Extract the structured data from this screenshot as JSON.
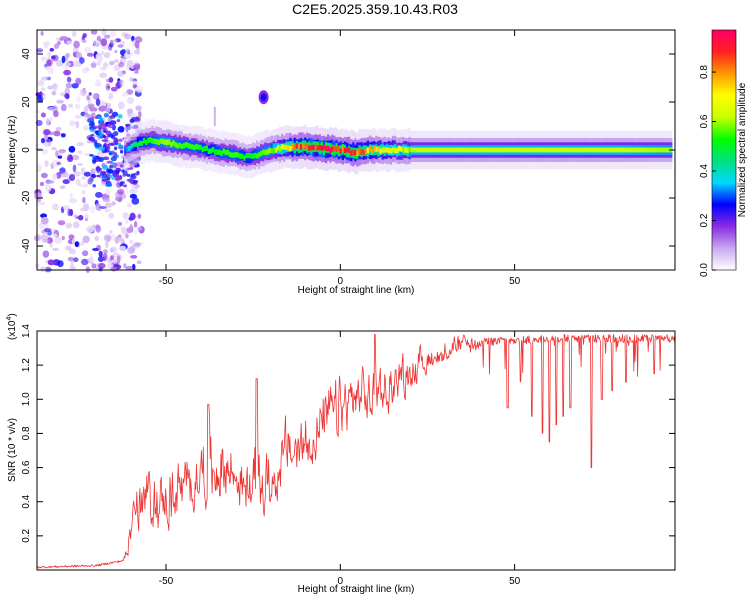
{
  "title": "C2E5.2025.359.10.43.R03",
  "chart_data": [
    {
      "type": "heatmap",
      "name": "spectrogram",
      "xlabel": "Height of straight line (km)",
      "ylabel": "Frequency (Hz)",
      "xlim": [
        -87,
        96
      ],
      "ylim": [
        -50,
        50
      ],
      "xticks": [
        "-50",
        "0",
        "50"
      ],
      "xtick_values": [
        -50,
        0,
        50
      ],
      "yticks": [
        "-40",
        "-20",
        "0",
        "20",
        "40"
      ],
      "ytick_values": [
        -40,
        -20,
        0,
        20,
        40
      ],
      "colorbar": {
        "label": "Normalized spectral amplitude",
        "range": [
          0,
          0.97
        ],
        "ticks": [
          "0.0",
          "0.2",
          "0.4",
          "0.6",
          "0.8"
        ],
        "tick_values": [
          0,
          0.2,
          0.4,
          0.6,
          0.8
        ],
        "stops": [
          "#ffffff",
          "#c8a8f0",
          "#8a2be2",
          "#0000ff",
          "#00d8ff",
          "#00e080",
          "#00ff00",
          "#c8ff00",
          "#ffff00",
          "#ff9900",
          "#ff2020",
          "#ff0066"
        ]
      },
      "ridge": {
        "x": [
          -62,
          -58,
          -54,
          -50,
          -46,
          -42,
          -38,
          -34,
          -30,
          -27,
          -24,
          -20,
          -16,
          -12,
          -8,
          -4,
          0,
          4,
          8,
          12,
          20,
          40,
          60,
          80,
          95
        ],
        "center_hz": [
          0,
          3,
          4,
          3,
          2,
          1,
          0,
          -1,
          -2,
          -3,
          -2,
          0,
          1,
          1.5,
          1,
          0.5,
          0,
          -1,
          0,
          0,
          0,
          0,
          0,
          0,
          0
        ],
        "amplitude": [
          0.3,
          0.5,
          0.55,
          0.6,
          0.55,
          0.55,
          0.5,
          0.55,
          0.55,
          0.5,
          0.55,
          0.6,
          0.7,
          0.85,
          0.9,
          0.9,
          0.85,
          0.85,
          0.75,
          0.7,
          0.62,
          0.62,
          0.62,
          0.62,
          0.6
        ]
      },
      "blob": {
        "x": -22,
        "y": 22,
        "amplitude": 0.25
      }
    },
    {
      "type": "line",
      "name": "snr",
      "xlabel": "Height of straight line (km)",
      "ylabel": "SNR (10 * v/v)",
      "y_exponent_label": "(x10",
      "y_exponent": "4",
      "xlim": [
        -87,
        96
      ],
      "ylim": [
        0,
        1.4
      ],
      "xticks": [
        "-50",
        "0",
        "50"
      ],
      "xtick_values": [
        -50,
        0,
        50
      ],
      "yticks": [
        "0.2",
        "0.4",
        "0.6",
        "0.8",
        "1.0",
        "1.2",
        "1.4"
      ],
      "ytick_values": [
        0.2,
        0.4,
        0.6,
        0.8,
        1.0,
        1.2,
        1.4
      ],
      "color": "#ee3333",
      "envelope": {
        "x": [
          -87,
          -70,
          -62,
          -60,
          -58,
          -55,
          -52,
          -48,
          -44,
          -40,
          -36,
          -32,
          -28,
          -24,
          -20,
          -16,
          -12,
          -8,
          -4,
          0,
          4,
          8,
          12,
          16,
          20,
          24,
          28,
          32,
          36,
          40,
          50,
          60,
          70,
          80,
          96
        ],
        "base": [
          0.01,
          0.02,
          0.05,
          0.18,
          0.22,
          0.2,
          0.18,
          0.2,
          0.3,
          0.35,
          0.3,
          0.38,
          0.32,
          0.25,
          0.3,
          0.45,
          0.5,
          0.6,
          0.7,
          0.72,
          0.8,
          0.82,
          0.88,
          0.95,
          1.05,
          1.12,
          1.2,
          1.25,
          1.28,
          1.3,
          1.33,
          1.34,
          1.34,
          1.34,
          1.34
        ],
        "peak": [
          0.01,
          0.02,
          0.08,
          0.45,
          0.6,
          0.7,
          0.65,
          0.72,
          0.75,
          0.9,
          0.95,
          0.9,
          0.7,
          0.85,
          0.8,
          0.98,
          1.0,
          1.05,
          1.15,
          1.25,
          1.3,
          1.25,
          1.28,
          1.3,
          1.33,
          1.34,
          1.35,
          1.36,
          1.36,
          1.36,
          1.37,
          1.38,
          1.38,
          1.38,
          1.38
        ]
      },
      "dips": [
        {
          "x": 48,
          "y": 0.95
        },
        {
          "x": 55,
          "y": 0.9
        },
        {
          "x": 58,
          "y": 0.8
        },
        {
          "x": 60,
          "y": 0.75
        },
        {
          "x": 62,
          "y": 0.85
        },
        {
          "x": 64,
          "y": 0.9
        },
        {
          "x": 66,
          "y": 0.95
        },
        {
          "x": 72,
          "y": 0.6
        },
        {
          "x": 75,
          "y": 1.0
        },
        {
          "x": 78,
          "y": 1.05
        },
        {
          "x": 82,
          "y": 1.1
        },
        {
          "x": 90,
          "y": 1.15
        }
      ],
      "spikes": [
        {
          "x": 10,
          "y": 1.38
        },
        {
          "x": -38,
          "y": 0.97
        },
        {
          "x": -24,
          "y": 1.12
        }
      ]
    }
  ]
}
